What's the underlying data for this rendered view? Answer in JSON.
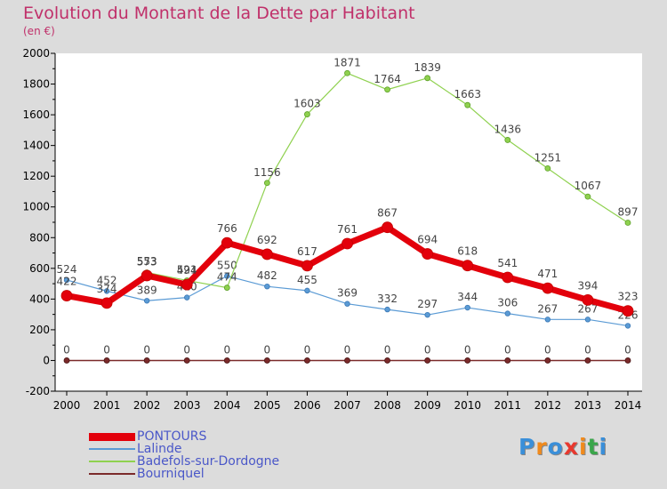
{
  "title": "Evolution du Montant de la Dette par Habitant",
  "unit_label": "(en €)",
  "logo": {
    "text": "Proxiti",
    "colors": [
      "#3a8fd9",
      "#f08a1c",
      "#3a8fd9",
      "#e8382e",
      "#f08a1c",
      "#3aa64a",
      "#3a8fd9"
    ]
  },
  "colors": {
    "background": "#dcdcdc",
    "plot_background": "#ffffff",
    "axis": "#000000",
    "title": "#c0306a",
    "legend_text": "#4a57c8"
  },
  "chart_data": {
    "type": "line",
    "title": "Evolution du Montant de la Dette par Habitant",
    "ylabel": "(en €)",
    "xlabel": "",
    "x": [
      "2000",
      "2001",
      "2002",
      "2003",
      "2004",
      "2005",
      "2006",
      "2007",
      "2008",
      "2009",
      "2010",
      "2011",
      "2012",
      "2013",
      "2014"
    ],
    "ylim": [
      -200,
      2000
    ],
    "yticks": [
      -200,
      0,
      200,
      400,
      600,
      800,
      1000,
      1200,
      1400,
      1600,
      1800,
      2000
    ],
    "grid": false,
    "legend_position": "bottom-left",
    "series": [
      {
        "name": "PONTOURS",
        "color": "#e3000b",
        "values": [
          422,
          374,
          553,
          494,
          766,
          692,
          617,
          761,
          867,
          694,
          618,
          541,
          471,
          394,
          323
        ],
        "labels": [
          "422",
          "374",
          "553",
          "494",
          "766",
          "692",
          "617",
          "761",
          "867",
          "694",
          "618",
          "541",
          "471",
          "394",
          "323"
        ]
      },
      {
        "name": "Lalinde",
        "color": "#5b9bd5",
        "values": [
          524,
          452,
          389,
          410,
          550,
          482,
          455,
          369,
          332,
          297,
          344,
          306,
          267,
          267,
          226
        ],
        "labels": [
          "524",
          "452",
          "389",
          "410",
          "550",
          "482",
          "455",
          "369",
          "332",
          "297",
          "344",
          "306",
          "267",
          "267",
          "226"
        ]
      },
      {
        "name": "Badefols-sur-Dordogne",
        "color": "#8fd14f",
        "values": [
          null,
          null,
          573,
          521,
          474,
          1156,
          1603,
          1871,
          1764,
          1839,
          1663,
          1436,
          1251,
          1067,
          897
        ],
        "labels": [
          "",
          "",
          "573",
          "521",
          "474",
          "1156",
          "1603",
          "1871",
          "1764",
          "1839",
          "1663",
          "1436",
          "1251",
          "1067",
          "897"
        ]
      },
      {
        "name": "Bourniquel",
        "color": "#7b2a2a",
        "values": [
          0,
          0,
          0,
          0,
          0,
          0,
          0,
          0,
          0,
          0,
          0,
          0,
          0,
          0,
          0
        ],
        "labels": [
          "0",
          "0",
          "0",
          "0",
          "0",
          "0",
          "0",
          "0",
          "0",
          "0",
          "0",
          "0",
          "0",
          "0",
          "0"
        ]
      }
    ]
  }
}
